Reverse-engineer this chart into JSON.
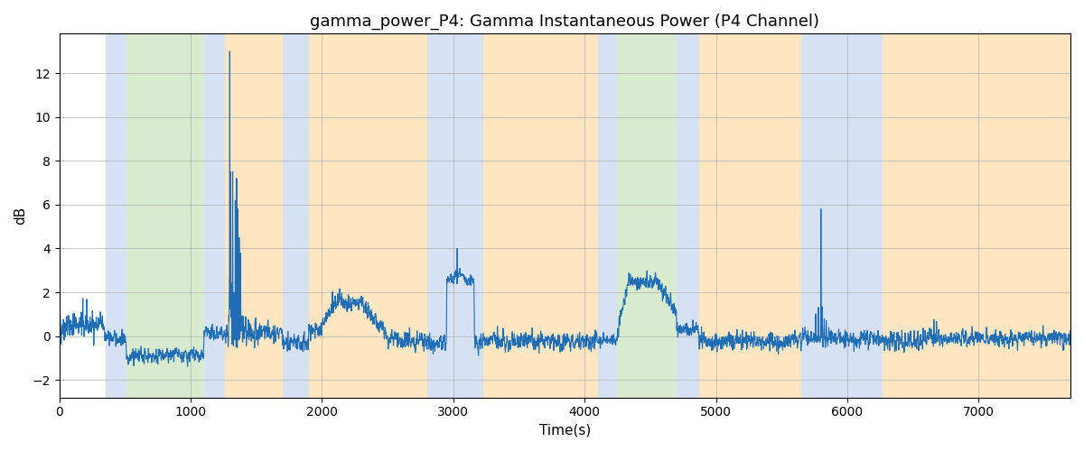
{
  "title": "gamma_power_P4: Gamma Instantaneous Power (P4 Channel)",
  "xlabel": "Time(s)",
  "ylabel": "dB",
  "xlim": [
    0,
    7700
  ],
  "ylim": [
    -2.8,
    13.8
  ],
  "figsize": [
    12.0,
    5.0
  ],
  "dpi": 100,
  "line_color": "#1f6eb5",
  "line_width": 0.8,
  "background_color": "#ffffff",
  "grid_color": "#b0b0b0",
  "title_fontsize": 13,
  "label_fontsize": 11,
  "colored_bands": [
    {
      "xmin": 350,
      "xmax": 510,
      "color": "#aec6e8",
      "alpha": 0.5
    },
    {
      "xmin": 510,
      "xmax": 1100,
      "color": "#90c878",
      "alpha": 0.35
    },
    {
      "xmin": 1100,
      "xmax": 1260,
      "color": "#aec6e8",
      "alpha": 0.5
    },
    {
      "xmin": 1260,
      "xmax": 1700,
      "color": "#fdc97a",
      "alpha": 0.45
    },
    {
      "xmin": 1700,
      "xmax": 1900,
      "color": "#aec6e8",
      "alpha": 0.5
    },
    {
      "xmin": 1900,
      "xmax": 2800,
      "color": "#fdc97a",
      "alpha": 0.45
    },
    {
      "xmin": 2800,
      "xmax": 3230,
      "color": "#aec6e8",
      "alpha": 0.5
    },
    {
      "xmin": 3230,
      "xmax": 4100,
      "color": "#fdc97a",
      "alpha": 0.45
    },
    {
      "xmin": 4100,
      "xmax": 4250,
      "color": "#aec6e8",
      "alpha": 0.5
    },
    {
      "xmin": 4250,
      "xmax": 4700,
      "color": "#90c878",
      "alpha": 0.35
    },
    {
      "xmin": 4700,
      "xmax": 4870,
      "color": "#aec6e8",
      "alpha": 0.5
    },
    {
      "xmin": 4870,
      "xmax": 5650,
      "color": "#fdc97a",
      "alpha": 0.45
    },
    {
      "xmin": 5650,
      "xmax": 6270,
      "color": "#aec6e8",
      "alpha": 0.5
    },
    {
      "xmin": 6270,
      "xmax": 6600,
      "color": "#fdc97a",
      "alpha": 0.45
    },
    {
      "xmin": 6600,
      "xmax": 7700,
      "color": "#fdc97a",
      "alpha": 0.45
    }
  ],
  "seed": 42
}
